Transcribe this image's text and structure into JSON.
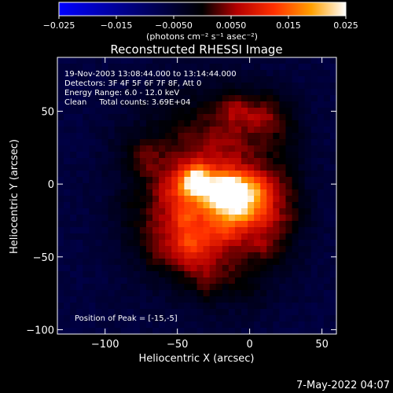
{
  "chart_data": {
    "type": "heatmap",
    "title": "Reconstructed RHESSI Image",
    "xlabel": "Heliocentric X (arcsec)",
    "ylabel": "Heliocentric Y (arcsec)",
    "xlim": [
      -133,
      60
    ],
    "ylim": [
      -103,
      87
    ],
    "xticks": [
      -100,
      -50,
      0,
      50
    ],
    "yticks": [
      -100,
      -50,
      0,
      50
    ],
    "xtick_labels": [
      "−100",
      "−50",
      "0",
      "50"
    ],
    "ytick_labels": [
      "−100",
      "−50",
      "0",
      "50"
    ],
    "colorbar": {
      "range": [
        -0.025,
        0.025
      ],
      "ticks": [
        -0.025,
        -0.015,
        -0.005,
        0.005,
        0.015,
        0.025
      ],
      "tick_labels": [
        "−0.025",
        "−0.015",
        "−0.0050",
        "0.0050",
        "0.015",
        "0.025"
      ],
      "unit_label": "(photons cm⁻² s⁻¹ asec⁻²)",
      "colors": [
        "#0000ff",
        "#000000",
        "#c80000",
        "#ff8c00",
        "#ffff80",
        "#ffffff"
      ]
    },
    "annotations": [
      "19-Nov-2003 13:08:44.000 to 13:14:44.000",
      "Detectors: 3F 4F 5F 6F 7F 8F, Att 0",
      "Energy Range: 6.0 - 12.0 keV",
      "Clean     Total counts: 3.69E+04"
    ],
    "peak_label": "Position of Peak = [-15,-5]",
    "peaks": [
      {
        "x": -15,
        "y": -5,
        "value": 0.025
      },
      {
        "x": -38,
        "y": 0,
        "value": 0.022
      }
    ],
    "background_value": -0.006,
    "diffuse_value": 0.008
  },
  "footer": {
    "date": "7-May-2022 04:07"
  }
}
